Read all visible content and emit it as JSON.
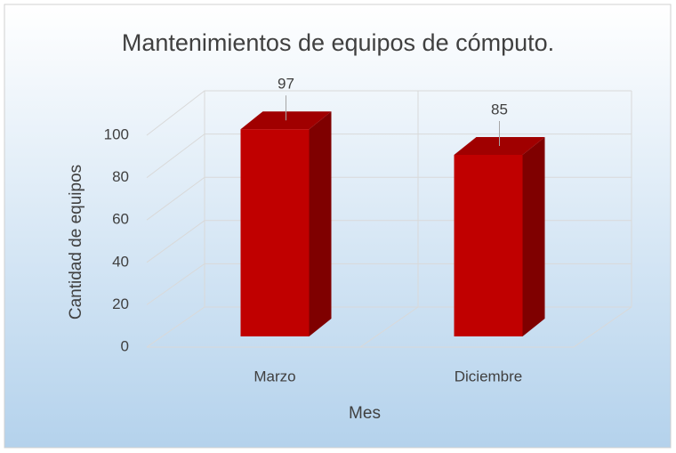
{
  "chart_data": {
    "type": "bar3d",
    "title": "Mantenimientos de equipos de cómputo.",
    "categories": [
      "Marzo",
      "Diciembre"
    ],
    "values": [
      97,
      85
    ],
    "color": "#c00000",
    "x_label": "Mes",
    "y_label": "Cantidad de equipos",
    "ylim": [
      0,
      100
    ],
    "yticks": [
      0,
      20,
      40,
      60,
      80,
      100
    ],
    "grid": true
  }
}
